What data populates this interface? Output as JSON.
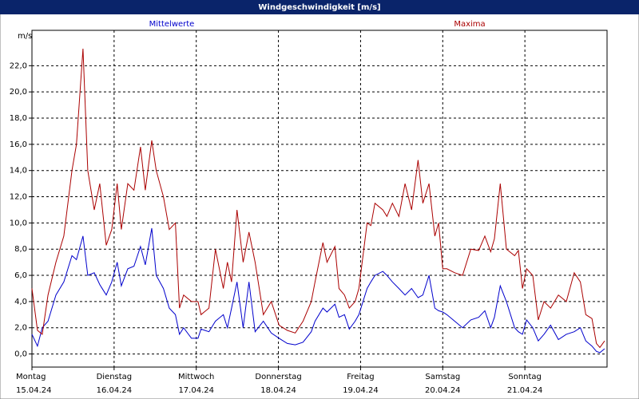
{
  "chart_data": {
    "type": "line",
    "title": "Windgeschwindigkeit [m/s]",
    "y_label": "m/s",
    "xlim": [
      0,
      168
    ],
    "ylim": [
      -1.0,
      24.7
    ],
    "xticks": [
      {
        "value": 0,
        "label": "Montag",
        "date": "15.04.24"
      },
      {
        "value": 24,
        "label": "Dienstag",
        "date": "16.04.24"
      },
      {
        "value": 48,
        "label": "Mittwoch",
        "date": "17.04.24"
      },
      {
        "value": 72,
        "label": "Donnerstag",
        "date": "18.04.24"
      },
      {
        "value": 96,
        "label": "Freitag",
        "date": "19.04.24"
      },
      {
        "value": 120,
        "label": "Samstag",
        "date": "20.04.24"
      },
      {
        "value": 144,
        "label": "Sonntag",
        "date": "21.04.24"
      }
    ],
    "yticks": [
      {
        "value": 0,
        "label": "0,0"
      },
      {
        "value": 2,
        "label": "2,0"
      },
      {
        "value": 4,
        "label": "4,0"
      },
      {
        "value": 6,
        "label": "6,0"
      },
      {
        "value": 8,
        "label": "8,0"
      },
      {
        "value": 10,
        "label": "10,0"
      },
      {
        "value": 12,
        "label": "12,0"
      },
      {
        "value": 14,
        "label": "14,0"
      },
      {
        "value": 16,
        "label": "16,0"
      },
      {
        "value": 18,
        "label": "18,0"
      },
      {
        "value": 20,
        "label": "20,0"
      },
      {
        "value": 22,
        "label": "22,0"
      }
    ],
    "grid": true,
    "x": [
      0,
      1.6,
      3.0,
      4.7,
      7.0,
      9.3,
      11.7,
      13.0,
      14.9,
      16.3,
      18.2,
      19.8,
      21.7,
      23.3,
      24.9,
      26.1,
      28.0,
      29.8,
      31.7,
      33.1,
      35.0,
      36.3,
      38.4,
      40.1,
      41.9,
      43.1,
      44.3,
      46.6,
      48.5,
      49.4,
      51.7,
      53.6,
      55.9,
      57.1,
      58.3,
      59.9,
      61.7,
      63.4,
      65.2,
      67.6,
      69.9,
      72.2,
      74.6,
      76.9,
      79.2,
      81.6,
      82.7,
      85.0,
      86.2,
      88.5,
      89.7,
      91.3,
      92.7,
      94.4,
      95.5,
      97.9,
      99.0,
      100.2,
      102.5,
      103.7,
      105.3,
      107.2,
      109.0,
      110.9,
      112.8,
      114.2,
      116.0,
      117.7,
      118.8,
      120.0,
      121.2,
      123.5,
      125.8,
      128.2,
      130.5,
      132.3,
      134.0,
      135.1,
      136.8,
      138.6,
      141.0,
      142.1,
      143.3,
      144.5,
      146.3,
      147.9,
      149.6,
      151.5,
      153.8,
      156.1,
      158.4,
      160.2,
      161.8,
      163.6,
      164.9,
      165.9,
      167.3
    ],
    "series": [
      {
        "name": "Mittelwerte",
        "color": "#0000cc",
        "values": [
          1.5,
          0.6,
          2.0,
          2.5,
          4.5,
          5.5,
          7.5,
          7.2,
          9.0,
          6.0,
          6.2,
          5.3,
          4.5,
          5.5,
          7.0,
          5.2,
          6.5,
          6.7,
          8.2,
          6.8,
          9.6,
          6.0,
          5.0,
          3.5,
          3.0,
          1.5,
          2.0,
          1.2,
          1.2,
          1.9,
          1.7,
          2.5,
          3.0,
          2.0,
          3.5,
          5.5,
          2.0,
          5.5,
          1.7,
          2.5,
          1.6,
          1.2,
          0.8,
          0.7,
          0.9,
          1.7,
          2.5,
          3.5,
          3.2,
          3.8,
          2.8,
          3.0,
          1.9,
          2.5,
          3.0,
          5.0,
          5.5,
          6.0,
          6.3,
          6.0,
          5.5,
          5.0,
          4.5,
          5.0,
          4.3,
          4.5,
          6.0,
          3.5,
          3.3,
          3.2,
          3.0,
          2.5,
          2.0,
          2.6,
          2.8,
          3.3,
          2.0,
          2.8,
          5.2,
          4.0,
          2.0,
          1.7,
          1.5,
          2.6,
          2.0,
          1.0,
          1.5,
          2.2,
          1.1,
          1.5,
          1.7,
          2.0,
          1.0,
          0.6,
          0.2,
          0.1,
          0.4
        ]
      },
      {
        "name": "Maxima",
        "color": "#aa0000",
        "values": [
          5.0,
          1.8,
          1.5,
          4.5,
          7.0,
          9.0,
          14.0,
          16.0,
          23.3,
          14.0,
          11.0,
          13.0,
          8.3,
          9.5,
          13.0,
          9.5,
          13.0,
          12.5,
          15.8,
          12.5,
          16.3,
          14.0,
          12.0,
          9.5,
          10.0,
          3.5,
          4.5,
          4.0,
          4.0,
          3.0,
          3.5,
          8.0,
          5.0,
          7.0,
          5.5,
          11.0,
          7.0,
          9.3,
          7.0,
          3.0,
          4.0,
          2.2,
          1.8,
          1.6,
          2.5,
          4.0,
          5.5,
          8.5,
          7.0,
          8.2,
          5.0,
          4.5,
          3.5,
          4.0,
          5.0,
          10.0,
          9.8,
          11.5,
          11.0,
          10.5,
          11.5,
          10.5,
          13.0,
          11.0,
          14.8,
          11.5,
          13.0,
          9.0,
          10.0,
          6.5,
          6.5,
          6.2,
          6.0,
          8.0,
          7.9,
          9.0,
          7.8,
          8.8,
          13.0,
          8.0,
          7.5,
          7.9,
          5.0,
          6.5,
          6.0,
          2.6,
          4.0,
          3.5,
          4.5,
          4.0,
          6.2,
          5.5,
          3.0,
          2.7,
          0.8,
          0.5,
          1.0
        ]
      }
    ]
  }
}
